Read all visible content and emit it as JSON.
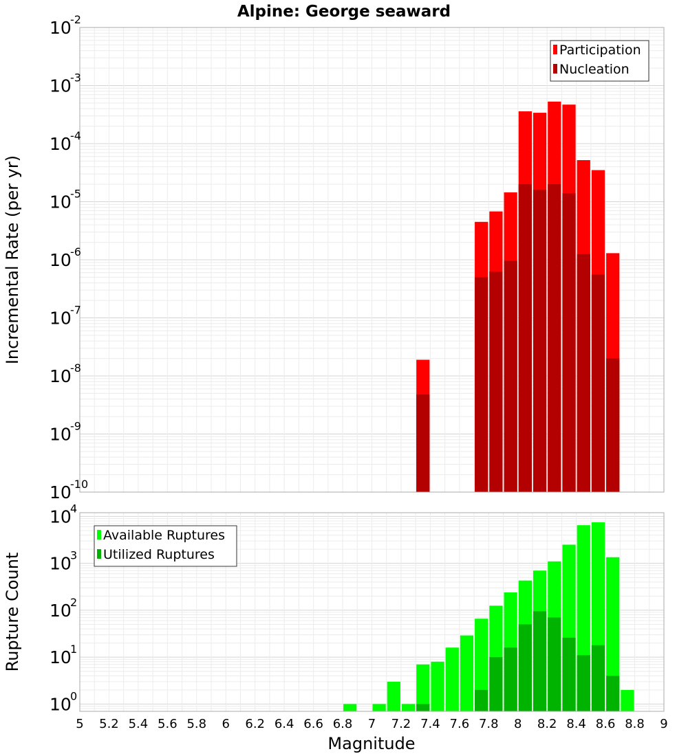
{
  "chart_data": {
    "type": "bar",
    "title": "Alpine: George seaward",
    "xlabel": "Magnitude",
    "xlim": [
      5,
      9
    ],
    "x_ticks": [
      "5",
      "5.2",
      "5.4",
      "5.6",
      "5.8",
      "6",
      "6.2",
      "6.4",
      "6.6",
      "6.8",
      "7",
      "7.2",
      "7.4",
      "7.6",
      "7.8",
      "8",
      "8.2",
      "8.4",
      "8.6",
      "8.8",
      "9"
    ],
    "bar_width": 0.1,
    "grid": true,
    "panels": [
      {
        "ylabel": "Incremental Rate (per yr)",
        "yscale": "log",
        "ylim": [
          1e-10,
          0.01
        ],
        "y_ticks": [
          {
            "base": "10",
            "exp": "-10",
            "value": 1e-10
          },
          {
            "base": "10",
            "exp": "-9",
            "value": 1e-09
          },
          {
            "base": "10",
            "exp": "-8",
            "value": 1e-08
          },
          {
            "base": "10",
            "exp": "-7",
            "value": 1e-07
          },
          {
            "base": "10",
            "exp": "-6",
            "value": 1e-06
          },
          {
            "base": "10",
            "exp": "-5",
            "value": 1e-05
          },
          {
            "base": "10",
            "exp": "-4",
            "value": 0.0001
          },
          {
            "base": "10",
            "exp": "-3",
            "value": 0.001
          },
          {
            "base": "10",
            "exp": "-2",
            "value": 0.01
          }
        ],
        "legend_position": "top-right",
        "series": [
          {
            "name": "Participation",
            "color": "#ff0000",
            "x": [
              7.35,
              7.75,
              7.85,
              7.95,
              8.05,
              8.15,
              8.25,
              8.35,
              8.45,
              8.55,
              8.65
            ],
            "values": [
              1.9e-08,
              4.5e-06,
              6.8e-06,
              1.45e-05,
              0.00036,
              0.00034,
              0.00053,
              0.00047,
              5.2e-05,
              3.5e-05,
              1.3e-06
            ]
          },
          {
            "name": "Nucleation",
            "color": "#b30000",
            "x": [
              7.35,
              7.75,
              7.85,
              7.95,
              8.05,
              8.15,
              8.25,
              8.35,
              8.45,
              8.55,
              8.65
            ],
            "values": [
              4.8e-09,
              5e-07,
              6.3e-07,
              9.6e-07,
              2e-05,
              1.6e-05,
              2e-05,
              1.4e-05,
              1.25e-06,
              5.6e-07,
              2e-08
            ]
          }
        ]
      },
      {
        "ylabel": "Rupture Count",
        "yscale": "log",
        "ylim": [
          0.7,
          12000
        ],
        "y_ticks": [
          {
            "base": "10",
            "exp": "0",
            "value": 1
          },
          {
            "base": "10",
            "exp": "1",
            "value": 10
          },
          {
            "base": "10",
            "exp": "2",
            "value": 100
          },
          {
            "base": "10",
            "exp": "3",
            "value": 1000
          },
          {
            "base": "10",
            "exp": "4",
            "value": 10000
          }
        ],
        "legend_position": "top-left",
        "series": [
          {
            "name": "Available Ruptures",
            "color": "#00ff00",
            "x": [
              6.85,
              7.05,
              7.15,
              7.25,
              7.35,
              7.45,
              7.55,
              7.65,
              7.75,
              7.85,
              7.95,
              8.05,
              8.15,
              8.25,
              8.35,
              8.45,
              8.55,
              8.65,
              8.75
            ],
            "values": [
              1,
              1,
              3,
              1,
              7,
              8,
              16,
              29,
              66,
              125,
              240,
              430,
              700,
              1100,
              2500,
              6500,
              7500,
              1350,
              2
            ]
          },
          {
            "name": "Utilized Ruptures",
            "color": "#00b300",
            "x": [
              7.35,
              7.75,
              7.85,
              7.95,
              8.05,
              8.15,
              8.25,
              8.35,
              8.45,
              8.55,
              8.65
            ],
            "values": [
              1,
              2,
              10,
              16,
              50,
              95,
              70,
              26,
              11,
              18,
              4
            ]
          }
        ]
      }
    ]
  }
}
